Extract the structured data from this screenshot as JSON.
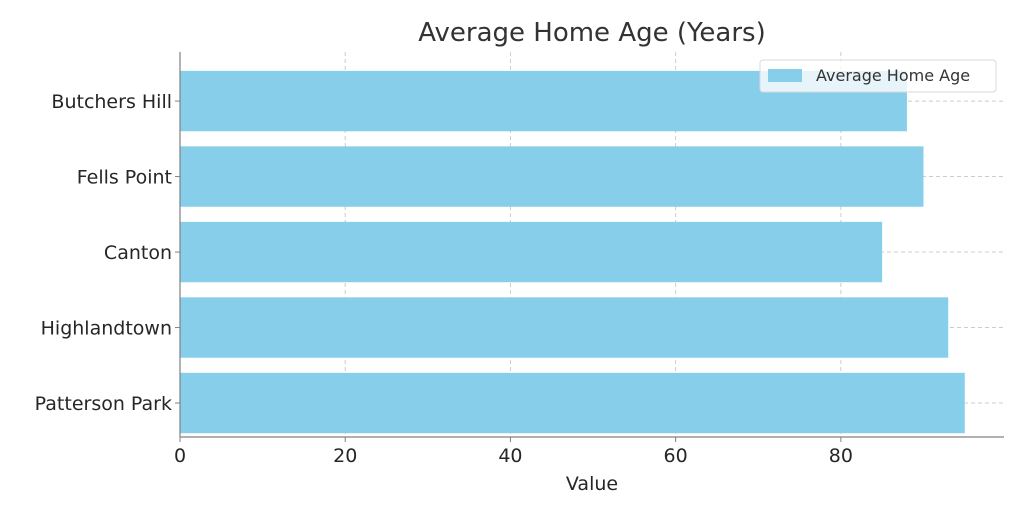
{
  "chart_data": {
    "type": "bar",
    "orientation": "horizontal",
    "title": "Average Home Age (Years)",
    "xlabel": "Value",
    "ylabel": "",
    "categories": [
      "Butchers Hill",
      "Fells Point",
      "Canton",
      "Highlandtown",
      "Patterson Park"
    ],
    "series": [
      {
        "name": "Average Home Age",
        "values": [
          88,
          90,
          85,
          93,
          95
        ]
      }
    ],
    "xlim": [
      0,
      99.75
    ],
    "xticks": [
      "0",
      "20",
      "40",
      "60",
      "80"
    ],
    "grid": true,
    "legend": {
      "position": "top-right",
      "entries": [
        "Average Home Age"
      ]
    },
    "colors": {
      "bar": "#87ceeb",
      "grid": "#cccccc",
      "axis": "#808080",
      "text": "#262626",
      "title": "#333333"
    }
  }
}
